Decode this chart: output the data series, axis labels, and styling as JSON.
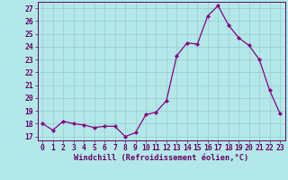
{
  "x": [
    0,
    1,
    2,
    3,
    4,
    5,
    6,
    7,
    8,
    9,
    10,
    11,
    12,
    13,
    14,
    15,
    16,
    17,
    18,
    19,
    20,
    21,
    22,
    23
  ],
  "y": [
    18.0,
    17.5,
    18.2,
    18.0,
    17.9,
    17.7,
    17.8,
    17.8,
    17.0,
    17.3,
    18.7,
    18.9,
    19.8,
    23.3,
    24.3,
    24.2,
    26.4,
    27.2,
    25.7,
    24.7,
    24.1,
    23.0,
    20.6,
    18.8
  ],
  "line_color": "#880088",
  "marker": "D",
  "marker_size": 2.2,
  "bg_color": "#b3e8e8",
  "grid_color": "#99cccc",
  "xlabel": "Windchill (Refroidissement éolien,°C)",
  "ylabel_ticks": [
    17,
    18,
    19,
    20,
    21,
    22,
    23,
    24,
    25,
    26,
    27
  ],
  "ylim": [
    16.7,
    27.5
  ],
  "xlim": [
    -0.5,
    23.5
  ],
  "tick_fontsize": 5.8,
  "xlabel_fontsize": 6.2,
  "axis_color": "#660066"
}
